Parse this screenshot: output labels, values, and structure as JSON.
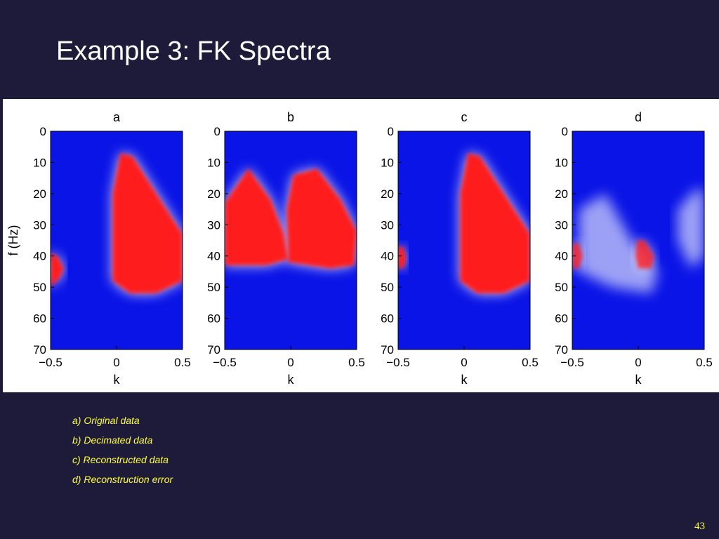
{
  "slide": {
    "title": "Example 3: FK Spectra",
    "page_number": "43",
    "captions": [
      "a) Original data",
      "b) Decimated data",
      "c) Reconstructed data",
      "d) Reconstruction error"
    ]
  },
  "colors": {
    "background": "#1e1b3a",
    "caption_text": "#ffff33",
    "colormap_low": "#0a14e6",
    "colormap_mid": "#ffffff",
    "colormap_high": "#ff1a1a"
  },
  "chart_data": [
    {
      "type": "heatmap",
      "title": "a",
      "xlabel": "k",
      "ylabel": "f (Hz)",
      "xlim": [
        -0.5,
        0.5
      ],
      "ylim": [
        0,
        70
      ],
      "xticks": [
        "−0.5",
        "0",
        "0.5"
      ],
      "yticks": [
        "0",
        "10",
        "20",
        "30",
        "40",
        "50",
        "60",
        "70"
      ],
      "energy_regions": [
        {
          "level": "high",
          "polygon_k_f": [
            [
              0.03,
              7
            ],
            [
              0.12,
              8
            ],
            [
              0.5,
              33
            ],
            [
              0.5,
              48
            ],
            [
              0.3,
              52
            ],
            [
              0.1,
              52
            ],
            [
              -0.03,
              48
            ],
            [
              -0.03,
              20
            ]
          ]
        },
        {
          "level": "high",
          "polygon_k_f": [
            [
              -0.5,
              39
            ],
            [
              -0.45,
              40
            ],
            [
              -0.4,
              44
            ],
            [
              -0.43,
              47
            ],
            [
              -0.5,
              50
            ]
          ]
        }
      ]
    },
    {
      "type": "heatmap",
      "title": "b",
      "xlabel": "k",
      "ylabel": "",
      "xlim": [
        -0.5,
        0.5
      ],
      "ylim": [
        0,
        70
      ],
      "xticks": [
        "−0.5",
        "0",
        "0.5"
      ],
      "yticks": [
        "0",
        "10",
        "20",
        "30",
        "40",
        "50",
        "60",
        "70"
      ],
      "energy_regions": [
        {
          "level": "high",
          "polygon_k_f": [
            [
              -0.5,
              23
            ],
            [
              -0.32,
              12
            ],
            [
              -0.15,
              22
            ],
            [
              -0.05,
              33
            ],
            [
              -0.02,
              41
            ],
            [
              -0.18,
              43
            ],
            [
              -0.5,
              43
            ]
          ]
        },
        {
          "level": "high",
          "polygon_k_f": [
            [
              0.02,
              14
            ],
            [
              0.2,
              12
            ],
            [
              0.38,
              22
            ],
            [
              0.5,
              32
            ],
            [
              0.48,
              43
            ],
            [
              0.3,
              44
            ],
            [
              -0.02,
              42
            ],
            [
              -0.03,
              25
            ]
          ]
        }
      ]
    },
    {
      "type": "heatmap",
      "title": "c",
      "xlabel": "k",
      "ylabel": "",
      "xlim": [
        -0.5,
        0.5
      ],
      "ylim": [
        0,
        70
      ],
      "xticks": [
        "−0.5",
        "0",
        "0.5"
      ],
      "yticks": [
        "0",
        "10",
        "20",
        "30",
        "40",
        "50",
        "60",
        "70"
      ],
      "energy_regions": [
        {
          "level": "high",
          "polygon_k_f": [
            [
              0.03,
              7
            ],
            [
              0.12,
              8
            ],
            [
              0.5,
              33
            ],
            [
              0.5,
              48
            ],
            [
              0.3,
              52
            ],
            [
              0.1,
              52
            ],
            [
              -0.03,
              48
            ],
            [
              -0.03,
              20
            ]
          ]
        },
        {
          "level": "high",
          "polygon_k_f": [
            [
              -0.5,
              37
            ],
            [
              -0.46,
              37
            ],
            [
              -0.44,
              41
            ],
            [
              -0.46,
              44
            ],
            [
              -0.5,
              44
            ]
          ]
        }
      ]
    },
    {
      "type": "heatmap",
      "title": "d",
      "xlabel": "k",
      "ylabel": "",
      "xlim": [
        -0.5,
        0.5
      ],
      "ylim": [
        0,
        70
      ],
      "xticks": [
        "−0.5",
        "0",
        "0.5"
      ],
      "yticks": [
        "0",
        "10",
        "20",
        "30",
        "40",
        "50",
        "60",
        "70"
      ],
      "energy_regions": [
        {
          "level": "medium",
          "polygon_k_f": [
            [
              -0.5,
              36
            ],
            [
              -0.45,
              36
            ],
            [
              -0.42,
              40
            ],
            [
              -0.45,
              44
            ],
            [
              -0.5,
              44
            ]
          ]
        },
        {
          "level": "medium",
          "polygon_k_f": [
            [
              -0.01,
              35
            ],
            [
              0.05,
              35
            ],
            [
              0.12,
              40
            ],
            [
              0.1,
              44
            ],
            [
              0.0,
              44
            ],
            [
              -0.02,
              40
            ]
          ]
        },
        {
          "level": "low",
          "polygon_k_f": [
            [
              -0.45,
              25
            ],
            [
              -0.25,
              20
            ],
            [
              -0.05,
              35
            ],
            [
              0.15,
              45
            ],
            [
              0.1,
              52
            ],
            [
              -0.2,
              50
            ],
            [
              -0.45,
              45
            ]
          ]
        },
        {
          "level": "low",
          "polygon_k_f": [
            [
              0.3,
              25
            ],
            [
              0.45,
              18
            ],
            [
              0.5,
              20
            ],
            [
              0.5,
              40
            ],
            [
              0.4,
              44
            ],
            [
              0.3,
              35
            ]
          ]
        }
      ]
    }
  ]
}
